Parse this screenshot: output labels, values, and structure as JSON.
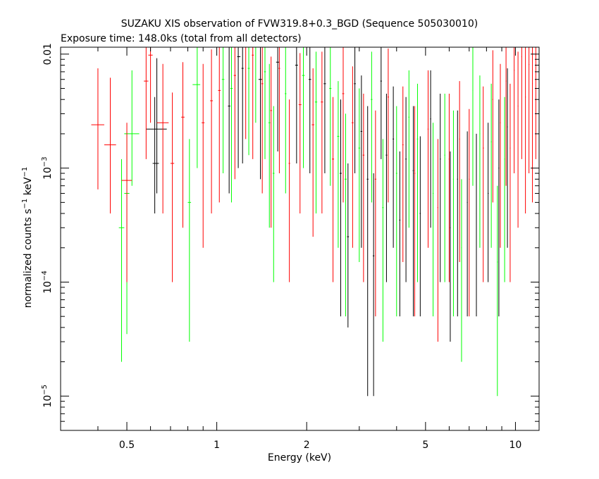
{
  "chart_data": {
    "type": "scatter",
    "title": "SUZAKU XIS observation of FVW319.8+0.3_BGD (Sequence 505030010)",
    "subtitle": "Exposure time: 148.0ks (total from all detectors)",
    "xlabel": "Energy (keV)",
    "ylabel_main": "normalized counts s",
    "ylabel_unit": " keV",
    "ylabel_exp": "−1",
    "x_scale": "log",
    "y_scale": "log",
    "xlim": [
      0.3,
      12.0
    ],
    "ylim": [
      5e-06,
      0.0115
    ],
    "x_ticks": [
      {
        "value": 0.5,
        "label": "0.5"
      },
      {
        "value": 1,
        "label": "1"
      },
      {
        "value": 2,
        "label": "2"
      },
      {
        "value": 5,
        "label": "5"
      },
      {
        "value": 10,
        "label": "10"
      }
    ],
    "y_ticks": [
      {
        "value": 1e-05,
        "base": "10",
        "exp": "−5"
      },
      {
        "value": 0.0001,
        "base": "10",
        "exp": "−4"
      },
      {
        "value": 0.001,
        "base": "10",
        "exp": "−3"
      },
      {
        "value": 0.01,
        "base": "0.01",
        "exp": ""
      }
    ],
    "grid": false,
    "series": [
      {
        "color": "#000000",
        "points": [
          [
            0.63,
            0.0022,
            0.58,
            0.68,
            0.0006,
            0.0092
          ],
          [
            0.62,
            0.0011,
            0.61,
            0.64,
            0.0004,
            0.0042
          ],
          [
            1.18,
            0.0095,
            1.17,
            1.2,
            0.001,
            0.0115
          ],
          [
            1.22,
            0.0075,
            1.21,
            1.23,
            0.0011,
            0.0115
          ],
          [
            1.1,
            0.0035,
            1.09,
            1.11,
            0.0006,
            0.0115
          ],
          [
            1.4,
            0.006,
            1.38,
            1.42,
            0.0008,
            0.0115
          ],
          [
            1.6,
            0.0085,
            1.58,
            1.62,
            0.0014,
            0.0115
          ],
          [
            1.85,
            0.008,
            1.83,
            1.87,
            0.0011,
            0.0115
          ],
          [
            2.05,
            0.006,
            2.03,
            2.07,
            0.0009,
            0.0115
          ],
          [
            2.3,
            0.0055,
            2.28,
            2.32,
            0.0009,
            0.0115
          ],
          [
            2.6,
            0.0009,
            2.58,
            2.62,
            5e-05,
            0.004
          ],
          [
            2.75,
            0.00025,
            2.73,
            2.77,
            4e-05,
            0.0011
          ],
          [
            2.9,
            0.0055,
            2.88,
            2.92,
            0.0009,
            0.0115
          ],
          [
            3.05,
            0.0021,
            3.03,
            3.07,
            0.0002,
            0.0065
          ],
          [
            3.2,
            0.0008,
            3.18,
            3.22,
            1e-05,
            0.0035
          ],
          [
            3.35,
            0.00017,
            3.33,
            3.37,
            1e-05,
            0.0009
          ],
          [
            3.55,
            0.0058,
            3.53,
            3.57,
            0.0012,
            0.0115
          ],
          [
            3.7,
            0.0013,
            3.68,
            3.72,
            0.0001,
            0.0045
          ],
          [
            3.9,
            0.0018,
            3.88,
            3.92,
            0.0002,
            0.0052
          ],
          [
            4.1,
            0.00035,
            4.08,
            4.12,
            5e-05,
            0.0014
          ],
          [
            4.3,
            0.0012,
            4.28,
            4.32,
            0.0001,
            0.0042
          ],
          [
            4.55,
            0.00095,
            4.53,
            4.57,
            5e-05,
            0.0035
          ],
          [
            4.8,
            0.0004,
            4.78,
            4.82,
            5e-05,
            0.0019
          ],
          [
            5.2,
            0.0027,
            5.18,
            5.22,
            0.0003,
            0.0072
          ],
          [
            5.6,
            0.0012,
            5.58,
            5.62,
            0.0001,
            0.0045
          ],
          [
            6.05,
            0.0003,
            6.03,
            6.07,
            3e-05,
            0.0014
          ],
          [
            6.4,
            0.0008,
            6.38,
            6.42,
            5e-05,
            0.0032
          ],
          [
            6.9,
            0.0005,
            6.88,
            6.92,
            5e-05,
            0.0021
          ],
          [
            7.4,
            0.0004,
            7.38,
            7.42,
            5e-05,
            0.002
          ],
          [
            8.1,
            0.0006,
            8.07,
            8.13,
            0.0001,
            0.0025
          ],
          [
            8.8,
            0.001,
            8.77,
            8.83,
            5e-05,
            0.004
          ],
          [
            9.4,
            0.0023,
            9.37,
            9.43,
            0.0002,
            0.0075
          ]
        ]
      },
      {
        "color": "#00ff00",
        "points": [
          [
            0.52,
            0.002,
            0.49,
            0.55,
            0.0007,
            0.0072
          ],
          [
            0.5,
            0.0006,
            0.49,
            0.51,
            3.5e-05,
            0.0021
          ],
          [
            0.48,
            0.0003,
            0.47,
            0.49,
            2e-05,
            0.0012
          ],
          [
            0.86,
            0.0054,
            0.83,
            0.88,
            0.001,
            0.0115
          ],
          [
            0.81,
            0.0005,
            0.8,
            0.82,
            3e-05,
            0.0018
          ],
          [
            1.05,
            0.006,
            1.04,
            1.06,
            0.0009,
            0.0115
          ],
          [
            1.12,
            0.005,
            1.11,
            1.13,
            0.0005,
            0.0115
          ],
          [
            1.28,
            0.0075,
            1.27,
            1.29,
            0.0013,
            0.0115
          ],
          [
            1.35,
            0.0115,
            1.34,
            1.36,
            0.0025,
            0.0115
          ],
          [
            1.45,
            0.007,
            1.44,
            1.46,
            0.0012,
            0.0115
          ],
          [
            1.5,
            0.0025,
            1.49,
            1.51,
            0.0003,
            0.0082
          ],
          [
            1.55,
            0.0009,
            1.54,
            1.56,
            0.0001,
            0.0035
          ],
          [
            1.7,
            0.0045,
            1.69,
            1.71,
            0.0006,
            0.0115
          ],
          [
            1.95,
            0.0065,
            1.93,
            1.97,
            0.001,
            0.0115
          ],
          [
            2.15,
            0.0038,
            2.13,
            2.17,
            0.0004,
            0.0105
          ],
          [
            2.4,
            0.005,
            2.38,
            2.42,
            0.0007,
            0.0115
          ],
          [
            2.55,
            0.0019,
            2.53,
            2.57,
            0.0002,
            0.0058
          ],
          [
            2.7,
            0.0008,
            2.68,
            2.72,
            5e-05,
            0.003
          ],
          [
            3.0,
            0.0015,
            2.98,
            3.02,
            0.00015,
            0.005
          ],
          [
            3.3,
            0.004,
            3.28,
            3.32,
            0.0005,
            0.0105
          ],
          [
            3.6,
            0.00045,
            3.58,
            3.62,
            3e-05,
            0.0018
          ],
          [
            4.0,
            0.0009,
            3.98,
            4.02,
            5e-05,
            0.0035
          ],
          [
            4.4,
            0.0028,
            4.38,
            4.42,
            0.0003,
            0.0072
          ],
          [
            4.7,
            0.0018,
            4.68,
            4.72,
            0.0001,
            0.0055
          ],
          [
            5.3,
            0.0006,
            5.28,
            5.32,
            5e-05,
            0.0025
          ],
          [
            5.8,
            0.0013,
            5.78,
            5.82,
            0.0001,
            0.0045
          ],
          [
            6.2,
            0.0008,
            6.18,
            6.22,
            5e-05,
            0.0032
          ],
          [
            6.6,
            0.0002,
            6.58,
            6.62,
            2e-05,
            0.0008
          ],
          [
            7.2,
            0.0048,
            7.18,
            7.22,
            0.0007,
            0.0115
          ],
          [
            7.6,
            0.002,
            7.58,
            7.62,
            0.0002,
            0.0065
          ],
          [
            8.3,
            0.0017,
            8.27,
            8.33,
            0.0002,
            0.0055
          ],
          [
            8.7,
            0.00015,
            8.67,
            8.73,
            1e-05,
            0.0007
          ],
          [
            9.2,
            0.0012,
            9.17,
            9.23,
            0.0001,
            0.0042
          ]
        ]
      },
      {
        "color": "#ff0000",
        "points": [
          [
            0.4,
            0.0024,
            0.38,
            0.42,
            0.00065,
            0.0075
          ],
          [
            0.44,
            0.0016,
            0.42,
            0.46,
            0.0004,
            0.0062
          ],
          [
            0.5,
            0.00078,
            0.48,
            0.52,
            0.0001,
            0.0025
          ],
          [
            0.58,
            0.0058,
            0.57,
            0.59,
            0.0012,
            0.0115
          ],
          [
            0.6,
            0.0098,
            0.59,
            0.61,
            0.0025,
            0.0115
          ],
          [
            0.66,
            0.0025,
            0.63,
            0.69,
            0.0004,
            0.0082
          ],
          [
            0.71,
            0.0011,
            0.7,
            0.72,
            0.0001,
            0.0046
          ],
          [
            0.77,
            0.0028,
            0.76,
            0.78,
            0.0003,
            0.0085
          ],
          [
            0.9,
            0.0025,
            0.89,
            0.91,
            0.0002,
            0.0082
          ],
          [
            0.96,
            0.0039,
            0.95,
            0.97,
            0.0004,
            0.011
          ],
          [
            1.02,
            0.0048,
            1.01,
            1.03,
            0.0005,
            0.0115
          ],
          [
            1.15,
            0.0065,
            1.14,
            1.16,
            0.0008,
            0.0115
          ],
          [
            1.25,
            0.0115,
            1.24,
            1.26,
            0.0018,
            0.0115
          ],
          [
            1.32,
            0.0098,
            1.31,
            1.33,
            0.0012,
            0.0115
          ],
          [
            1.42,
            0.0055,
            1.41,
            1.43,
            0.0006,
            0.0115
          ],
          [
            1.52,
            0.0032,
            1.51,
            1.53,
            0.0003,
            0.0095
          ],
          [
            1.62,
            0.0075,
            1.61,
            1.63,
            0.0009,
            0.0115
          ],
          [
            1.75,
            0.0011,
            1.74,
            1.76,
            0.0001,
            0.004
          ],
          [
            1.9,
            0.0036,
            1.88,
            1.92,
            0.0004,
            0.0102
          ],
          [
            2.1,
            0.0024,
            2.08,
            2.12,
            0.00025,
            0.0075
          ],
          [
            2.25,
            0.0038,
            2.23,
            2.27,
            0.0004,
            0.0105
          ],
          [
            2.45,
            0.0012,
            2.43,
            2.47,
            0.0001,
            0.0042
          ],
          [
            2.65,
            0.0045,
            2.63,
            2.67,
            0.0005,
            0.0115
          ],
          [
            2.85,
            0.0025,
            2.83,
            2.87,
            0.0002,
            0.0078
          ],
          [
            3.1,
            0.0013,
            3.08,
            3.12,
            0.0001,
            0.0045
          ],
          [
            3.4,
            0.0008,
            3.38,
            3.42,
            5e-05,
            0.0032
          ],
          [
            3.75,
            0.0042,
            3.73,
            3.77,
            0.0005,
            0.0112
          ],
          [
            4.2,
            0.0016,
            4.18,
            4.22,
            0.00015,
            0.0052
          ],
          [
            4.6,
            0.0009,
            4.58,
            4.62,
            5e-05,
            0.0035
          ],
          [
            5.1,
            0.0022,
            5.08,
            5.12,
            0.0002,
            0.0072
          ],
          [
            5.5,
            0.00045,
            5.48,
            5.52,
            3e-05,
            0.0018
          ],
          [
            6.0,
            0.0012,
            5.98,
            6.02,
            0.0001,
            0.0045
          ],
          [
            6.5,
            0.0018,
            6.48,
            6.52,
            0.00015,
            0.0058
          ],
          [
            7.0,
            0.0008,
            6.98,
            7.02,
            5e-05,
            0.0033
          ],
          [
            7.8,
            0.0015,
            7.77,
            7.83,
            0.0001,
            0.0052
          ],
          [
            8.4,
            0.004,
            8.37,
            8.43,
            0.0005,
            0.0108
          ],
          [
            8.9,
            0.0025,
            8.87,
            8.93,
            0.0002,
            0.0082
          ],
          [
            9.3,
            0.0058,
            9.27,
            9.33,
            0.0007,
            0.0115
          ],
          [
            9.6,
            0.0015,
            9.57,
            9.63,
            0.0001,
            0.0055
          ],
          [
            9.9,
            0.0072,
            9.87,
            9.93,
            0.0009,
            0.0115
          ],
          [
            10.2,
            0.0035,
            10.17,
            10.23,
            0.0003,
            0.0105
          ],
          [
            10.5,
            0.0095,
            10.47,
            10.53,
            0.0012,
            0.0115
          ],
          [
            10.8,
            0.0042,
            10.77,
            10.83,
            0.0004,
            0.0115
          ],
          [
            11.1,
            0.0081,
            11.07,
            11.13,
            0.0009,
            0.0115
          ],
          [
            11.4,
            0.0055,
            11.37,
            11.43,
            0.0005,
            0.0115
          ],
          [
            11.7,
            0.0098,
            11.67,
            11.73,
            0.0012,
            0.0115
          ]
        ]
      }
    ]
  }
}
